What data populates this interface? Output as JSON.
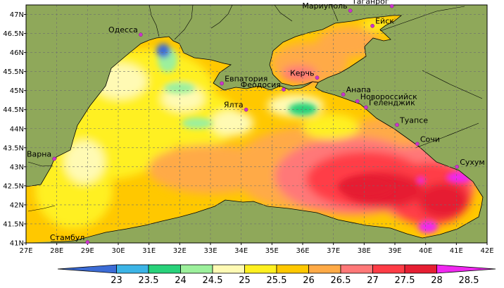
{
  "map": {
    "lon_min": 27,
    "lon_max": 42,
    "lat_min": 41,
    "lat_max": 47.25,
    "lon_ticks": [
      "27E",
      "28E",
      "29E",
      "30E",
      "31E",
      "32E",
      "33E",
      "34E",
      "35E",
      "36E",
      "37E",
      "38E",
      "39E",
      "40E",
      "41E",
      "42E"
    ],
    "lat_ticks": [
      {
        "v": 47,
        "label": "47N"
      },
      {
        "v": 46.5,
        "label": "46.5N"
      },
      {
        "v": 46,
        "label": "46N"
      },
      {
        "v": 45.5,
        "label": "45.5N"
      },
      {
        "v": 45,
        "label": "45N"
      },
      {
        "v": 44.5,
        "label": "44.5N"
      },
      {
        "v": 44,
        "label": "44N"
      },
      {
        "v": 43.5,
        "label": "43.5N"
      },
      {
        "v": 43,
        "label": "43N"
      },
      {
        "v": 42.5,
        "label": "42.5N"
      },
      {
        "v": 42,
        "label": "42N"
      },
      {
        "v": 41.5,
        "label": "41.5N"
      },
      {
        "v": 41,
        "label": "41N"
      }
    ],
    "colors": {
      "land": "#8fa85a",
      "frame": "#000000",
      "grid": "#6f6f6f",
      "city": "#cc33cc"
    },
    "cities": [
      {
        "name": "Одесса",
        "lon": 30.73,
        "lat": 46.47,
        "side": "left"
      },
      {
        "name": "Мариуполь",
        "lon": 37.55,
        "lat": 47.1,
        "side": "left"
      },
      {
        "name": "Таганрог",
        "lon": 38.9,
        "lat": 47.22,
        "side": "left"
      },
      {
        "name": "Ейск",
        "lon": 38.27,
        "lat": 46.7,
        "side": "right"
      },
      {
        "name": "Евпатория",
        "lon": 33.37,
        "lat": 45.19,
        "side": "right"
      },
      {
        "name": "Феодосия",
        "lon": 35.38,
        "lat": 45.03,
        "side": "left"
      },
      {
        "name": "Керчь",
        "lon": 36.47,
        "lat": 45.34,
        "side": "left"
      },
      {
        "name": "Анапа",
        "lon": 37.32,
        "lat": 44.9,
        "side": "right"
      },
      {
        "name": "Новороссийск",
        "lon": 37.78,
        "lat": 44.72,
        "side": "right"
      },
      {
        "name": "Геленджик",
        "lon": 38.06,
        "lat": 44.56,
        "side": "right"
      },
      {
        "name": "Ялта",
        "lon": 34.16,
        "lat": 44.5,
        "side": "left"
      },
      {
        "name": "Туапсе",
        "lon": 39.07,
        "lat": 44.1,
        "side": "right"
      },
      {
        "name": "Сочи",
        "lon": 39.73,
        "lat": 43.6,
        "side": "right"
      },
      {
        "name": "Сухум",
        "lon": 41.02,
        "lat": 43.0,
        "side": "right"
      },
      {
        "name": "Варна",
        "lon": 27.92,
        "lat": 43.21,
        "side": "left"
      },
      {
        "name": "Стамбул",
        "lon": 29.0,
        "lat": 41.02,
        "side": "left"
      }
    ]
  },
  "colorbar": {
    "labels": [
      "23",
      "23.5",
      "24",
      "24.5",
      "25",
      "25.5",
      "26",
      "26.5",
      "27",
      "27.5",
      "28",
      "28.5"
    ],
    "colors": [
      "#3c6cd6",
      "#3cb4e6",
      "#28d27a",
      "#9cf09c",
      "#fffab4",
      "#fff020",
      "#ffc800",
      "#ffaa46",
      "#ff7878",
      "#ff3c46",
      "#e61e32",
      "#f028f0"
    ]
  }
}
